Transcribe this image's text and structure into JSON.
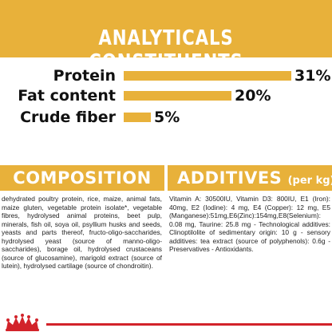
{
  "header": {
    "title": "ANALYTICALS CONSTITUENTS"
  },
  "analytics": [
    {
      "label": "Protein",
      "value": "31%",
      "fraction": 0.31
    },
    {
      "label": "Fat content",
      "value": "20%",
      "fraction": 0.2
    },
    {
      "label": "Crude fiber",
      "value": "5%",
      "fraction": 0.05
    }
  ],
  "composition": {
    "title": "COMPOSITION",
    "text": "dehydrated poultry protein, rice, maize, animal fats, maize gluten, vegetable protein isolate*, vegetable fibres, hydrolysed animal proteins, beet pulp, minerals, fish oil, soya oil, psyllium husks and seeds, yeasts and parts thereof, fructo-oligo-saccharides, hydrolysed yeast (source of manno-oligo-saccharides), borage oil, hydrolysed crustaceans (source of glucosamine), marigold extract (source of lutein), hydrolysed cartilage (source of chondroitin)."
  },
  "additives": {
    "title": "ADDITIVES",
    "subtitle": "(per kg)",
    "text": "Vitamin A: 30500IU, Vitamin D3: 800IU, E1 (Iron): 40mg, E2 (Iodine): 4 mg, E4 (Copper): 12 mg, E5 (Manganese):51mg,E6(Zinc):154mg,E8(Selenium): 0.08 mg, Taurine: 25.8 mg - Technological additives: Clinoptilolite of sedimentary origin: 10 g - sensory additives: tea extract (source of polyphenols): 0.6g - Preservatives - Antioxidants."
  },
  "colors": {
    "accent": "#e8b13a",
    "brand_red": "#d2232a",
    "text": "#1a1a1a"
  },
  "logo": {
    "icon": "royal-crown-logo-icon"
  }
}
